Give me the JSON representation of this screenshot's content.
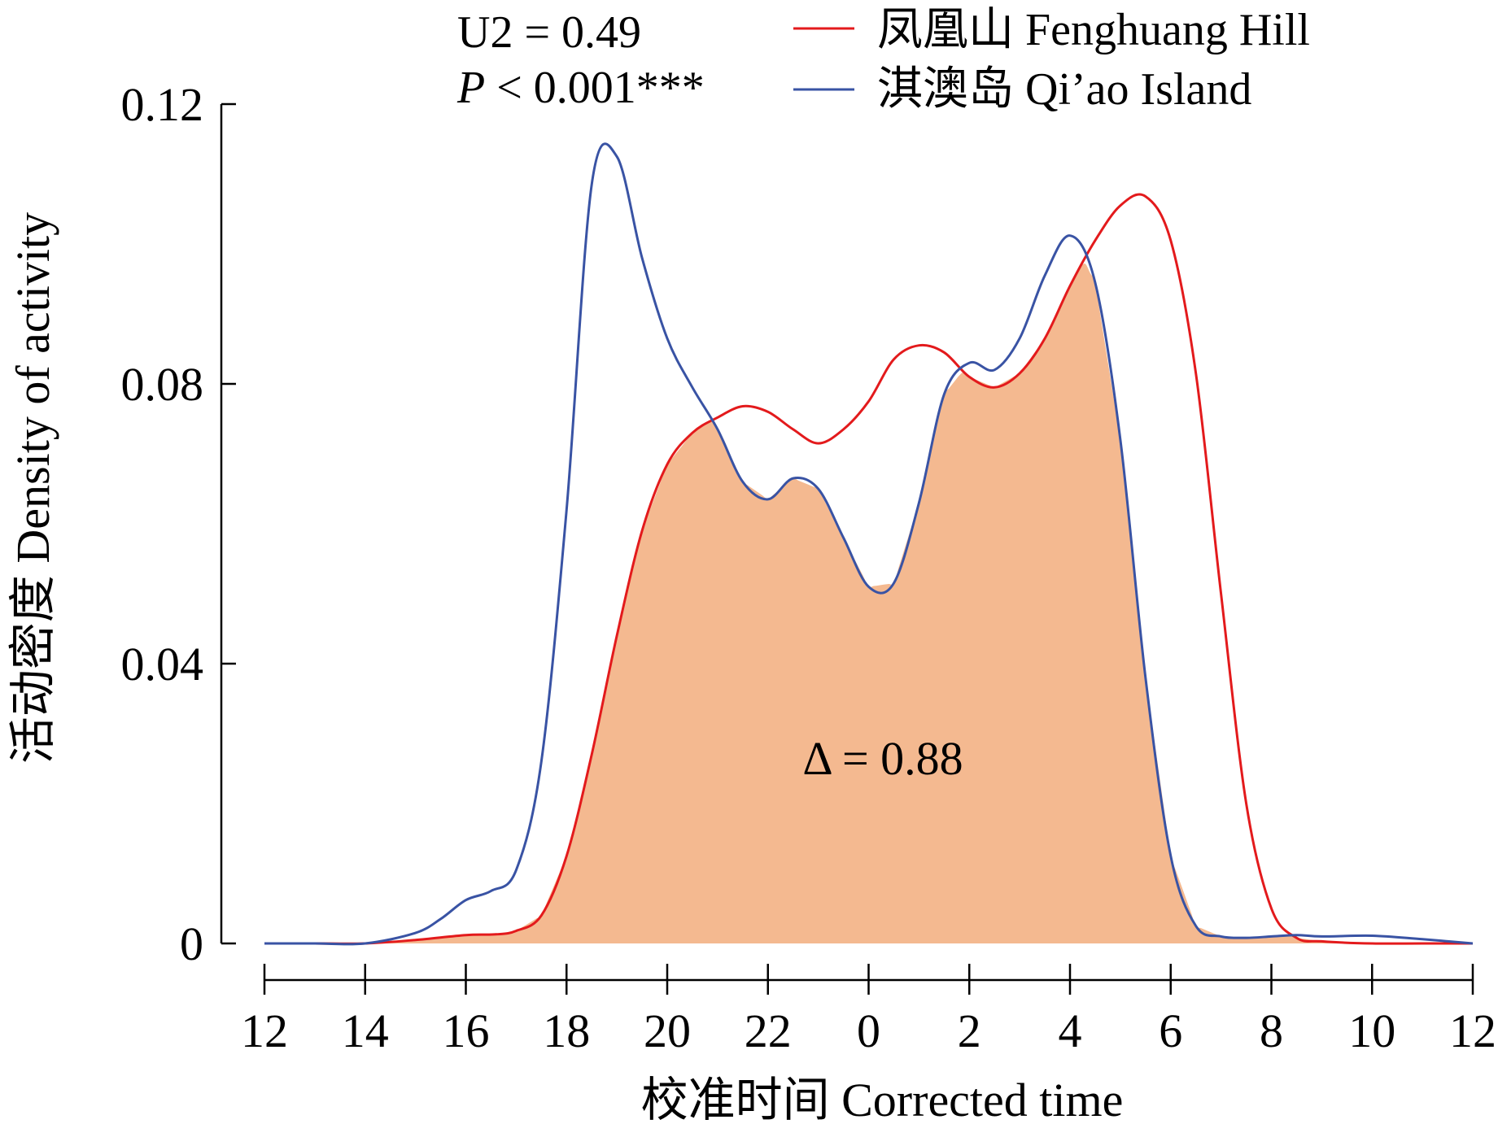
{
  "chart_data": {
    "type": "line",
    "xlabel": "校准时间 Corrected time",
    "ylabel": "活动密度 Density of activity",
    "ylim": [
      0,
      0.12
    ],
    "y_ticks": [
      {
        "value": 0,
        "label": "0"
      },
      {
        "value": 0.04,
        "label": "0.04"
      },
      {
        "value": 0.08,
        "label": "0.08"
      },
      {
        "value": 0.12,
        "label": "0.12"
      }
    ],
    "x_ticks": [
      "12",
      "14",
      "16",
      "18",
      "20",
      "22",
      "0",
      "2",
      "4",
      "6",
      "8",
      "10",
      "12"
    ],
    "x_range": [
      0,
      24
    ],
    "x_note": "x expressed as hours elapsed since the leftmost tick (12:00)",
    "stats": {
      "u2": "U2 = 0.49",
      "p_italic": "P",
      "p_rest": " < 0.001***"
    },
    "overlap_label": "Δ = 0.88",
    "overlap_fill_color": "#f4b990",
    "series": [
      {
        "name": "凤凰山 Fenghuang Hill",
        "color": "#e31a1c",
        "x": [
          0,
          1,
          2,
          3,
          4,
          4.6,
          5,
          5.5,
          6,
          6.5,
          7,
          7.5,
          8,
          8.5,
          9,
          9.5,
          10,
          10.5,
          11,
          11.5,
          12,
          12.5,
          13,
          13.5,
          14,
          14.5,
          15,
          15.5,
          16,
          16.5,
          17,
          17.5,
          18,
          18.5,
          19,
          19.5,
          20,
          20.5,
          21,
          22,
          23,
          24
        ],
        "y": [
          0,
          0,
          0,
          0.0005,
          0.0012,
          0.0013,
          0.0018,
          0.004,
          0.0125,
          0.027,
          0.044,
          0.059,
          0.0685,
          0.073,
          0.0752,
          0.0768,
          0.076,
          0.0735,
          0.0715,
          0.0735,
          0.0775,
          0.0835,
          0.0855,
          0.0845,
          0.081,
          0.0795,
          0.0815,
          0.0865,
          0.094,
          0.1005,
          0.1055,
          0.1068,
          0.1005,
          0.0815,
          0.05,
          0.02,
          0.005,
          0.0008,
          0.0003,
          0,
          0,
          0
        ]
      },
      {
        "name": "淇澳岛 Qi’ao Island",
        "color": "#3953a4",
        "x": [
          0,
          1,
          2,
          3,
          3.5,
          4,
          4.5,
          5,
          5.5,
          6,
          6.5,
          7,
          7.5,
          8,
          8.5,
          9,
          9.5,
          10,
          10.5,
          11,
          11.5,
          12,
          12.5,
          13,
          13.5,
          14,
          14.5,
          15,
          15.5,
          16,
          16.5,
          17,
          17.5,
          18,
          18.5,
          19,
          19.5,
          20,
          20.5,
          21,
          22,
          23,
          24
        ],
        "y": [
          0,
          0,
          0,
          0.0015,
          0.0035,
          0.0062,
          0.0075,
          0.0105,
          0.026,
          0.062,
          0.1085,
          0.1125,
          0.098,
          0.0865,
          0.0795,
          0.0735,
          0.066,
          0.0635,
          0.0665,
          0.065,
          0.058,
          0.051,
          0.0515,
          0.063,
          0.0785,
          0.083,
          0.082,
          0.0865,
          0.0955,
          0.1012,
          0.0945,
          0.072,
          0.038,
          0.0125,
          0.0025,
          0.001,
          0.0008,
          0.001,
          0.0012,
          0.001,
          0.0011,
          0.0006,
          0
        ]
      }
    ]
  }
}
